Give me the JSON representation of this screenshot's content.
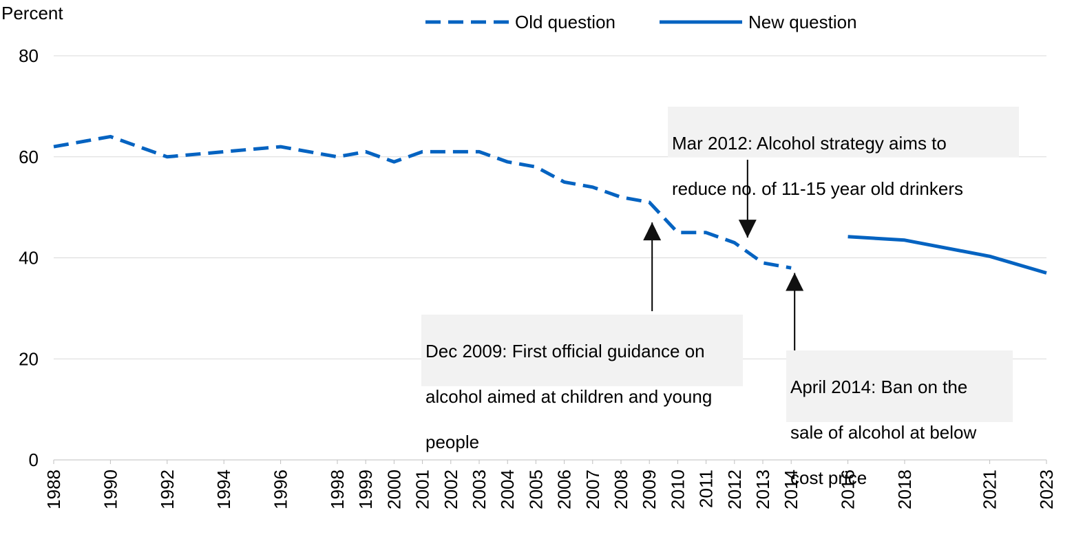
{
  "chart_data": {
    "type": "line",
    "ylabel": "Percent",
    "ylim": [
      0,
      80
    ],
    "yticks": [
      0,
      20,
      40,
      60,
      80
    ],
    "grid": true,
    "legend_position": "top",
    "x_categories": [
      "1988",
      "1990",
      "1992",
      "1994",
      "1996",
      "1998",
      "1999",
      "2000",
      "2001",
      "2002",
      "2003",
      "2004",
      "2005",
      "2006",
      "2007",
      "2008",
      "2009",
      "2010",
      "2011",
      "2012",
      "2013",
      "2014",
      "2016",
      "2018",
      "2021",
      "2023"
    ],
    "series": [
      {
        "name": "Old question",
        "style": "dashed",
        "color": "#0563c1",
        "points": [
          {
            "x": "1988",
            "y": 62
          },
          {
            "x": "1990",
            "y": 64
          },
          {
            "x": "1992",
            "y": 60
          },
          {
            "x": "1994",
            "y": 61
          },
          {
            "x": "1996",
            "y": 62
          },
          {
            "x": "1998",
            "y": 60
          },
          {
            "x": "1999",
            "y": 61
          },
          {
            "x": "2000",
            "y": 59
          },
          {
            "x": "2001",
            "y": 61
          },
          {
            "x": "2002",
            "y": 61
          },
          {
            "x": "2003",
            "y": 61
          },
          {
            "x": "2004",
            "y": 59
          },
          {
            "x": "2005",
            "y": 58
          },
          {
            "x": "2006",
            "y": 55
          },
          {
            "x": "2007",
            "y": 54
          },
          {
            "x": "2008",
            "y": 52
          },
          {
            "x": "2009",
            "y": 51
          },
          {
            "x": "2010",
            "y": 45
          },
          {
            "x": "2011",
            "y": 45
          },
          {
            "x": "2012",
            "y": 43
          },
          {
            "x": "2013",
            "y": 39
          },
          {
            "x": "2014",
            "y": 38
          }
        ]
      },
      {
        "name": "New question",
        "style": "solid",
        "color": "#0563c1",
        "points": [
          {
            "x": "2016",
            "y": 44.2
          },
          {
            "x": "2018",
            "y": 43.5
          },
          {
            "x": "2021",
            "y": 40.3
          },
          {
            "x": "2023",
            "y": 37
          }
        ]
      }
    ],
    "annotations": [
      {
        "lines": [
          "Dec 2009: First  official guidance on",
          "alcohol aimed at children and young",
          "people"
        ],
        "target_x": "2009",
        "target_y": 47
      },
      {
        "lines": [
          "Mar 2012: Alcohol strategy aims to",
          "reduce no. of 11-15 year old drinkers"
        ],
        "target_x": "2012",
        "target_y": 44
      },
      {
        "lines": [
          "April 2014: Ban on the",
          "sale of alcohol at below",
          "cost price"
        ],
        "target_x": "2014",
        "target_y": 37
      }
    ]
  }
}
